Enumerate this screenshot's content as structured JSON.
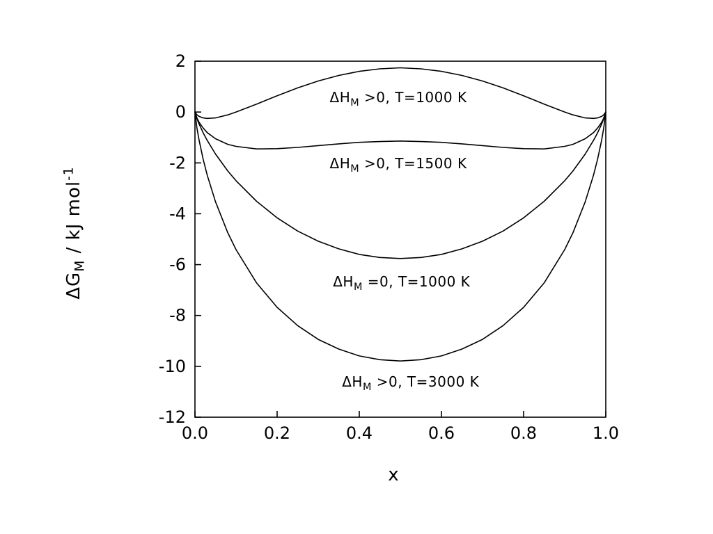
{
  "colors": {
    "background": "#ffffff",
    "foreground": "#000000"
  },
  "chart_data": {
    "type": "line",
    "title": "",
    "xlabel": "x",
    "ylabel": {
      "pre": "ΔG",
      "sub": "M",
      "mid": " / kJ mol",
      "sup": "-1"
    },
    "xlim": [
      0,
      1
    ],
    "ylim": [
      -12,
      2
    ],
    "grid": false,
    "legend": "inline-annotations",
    "xticks": [
      {
        "v": 0.0,
        "label": "0.0"
      },
      {
        "v": 0.2,
        "label": "0.2"
      },
      {
        "v": 0.4,
        "label": "0.4"
      },
      {
        "v": 0.6,
        "label": "0.6"
      },
      {
        "v": 0.8,
        "label": "0.8"
      },
      {
        "v": 1.0,
        "label": "1.0"
      }
    ],
    "yticks": [
      {
        "v": 2,
        "label": "2"
      },
      {
        "v": 0,
        "label": "0"
      },
      {
        "v": -2,
        "label": "-2"
      },
      {
        "v": -4,
        "label": "-4"
      },
      {
        "v": -6,
        "label": "-6"
      },
      {
        "v": -8,
        "label": "-8"
      },
      {
        "v": -10,
        "label": "-10"
      },
      {
        "v": -12,
        "label": "-12"
      }
    ],
    "x": [
      0,
      0.005,
      0.01,
      0.02,
      0.03,
      0.05,
      0.08,
      0.1,
      0.15,
      0.2,
      0.25,
      0.3,
      0.35,
      0.4,
      0.45,
      0.5,
      0.55,
      0.6,
      0.65,
      0.7,
      0.75,
      0.8,
      0.85,
      0.9,
      0.92,
      0.95,
      0.97,
      0.98,
      0.99,
      0.995,
      1
    ],
    "series": [
      {
        "id": "dHpos-T1000",
        "name": "ΔH_M>0, T=1000 K",
        "values": [
          0,
          -0.11,
          -0.17,
          -0.23,
          -0.25,
          -0.23,
          -0.11,
          0.0,
          0.31,
          0.64,
          0.95,
          1.22,
          1.44,
          1.6,
          1.7,
          1.74,
          1.7,
          1.6,
          1.44,
          1.22,
          0.95,
          0.64,
          0.31,
          0.0,
          -0.11,
          -0.23,
          -0.25,
          -0.23,
          -0.17,
          -0.11,
          0
        ]
      },
      {
        "id": "dHpos-T1500",
        "name": "ΔH_M>0, T=1500 K",
        "values": [
          0,
          -0.24,
          -0.4,
          -0.63,
          -0.81,
          -1.05,
          -1.27,
          -1.35,
          -1.45,
          -1.44,
          -1.39,
          -1.32,
          -1.25,
          -1.19,
          -1.16,
          -1.14,
          -1.16,
          -1.19,
          -1.25,
          -1.32,
          -1.39,
          -1.44,
          -1.45,
          -1.35,
          -1.27,
          -1.05,
          -0.81,
          -0.63,
          -0.4,
          -0.24,
          0
        ]
      },
      {
        "id": "dHzero-T1000",
        "name": "ΔH_M=0, T=1000 K",
        "values": [
          0,
          -0.26,
          -0.47,
          -0.82,
          -1.12,
          -1.65,
          -2.32,
          -2.7,
          -3.51,
          -4.16,
          -4.68,
          -5.08,
          -5.38,
          -5.6,
          -5.72,
          -5.76,
          -5.72,
          -5.6,
          -5.38,
          -5.08,
          -4.68,
          -4.16,
          -3.51,
          -2.7,
          -2.32,
          -1.65,
          -1.12,
          -0.82,
          -0.47,
          -0.26,
          0
        ]
      },
      {
        "id": "dHpos-T3000",
        "name": "ΔH_M>0, T=3000 K",
        "values": [
          0,
          -0.64,
          -1.1,
          -1.86,
          -2.49,
          -3.53,
          -4.75,
          -5.41,
          -6.72,
          -7.68,
          -8.4,
          -8.94,
          -9.32,
          -9.59,
          -9.74,
          -9.79,
          -9.74,
          -9.59,
          -9.32,
          -8.94,
          -8.4,
          -7.68,
          -6.72,
          -5.41,
          -4.75,
          -3.53,
          -2.49,
          -1.86,
          -1.1,
          -0.64,
          0
        ]
      }
    ],
    "annotations": [
      {
        "pre": "ΔH",
        "sub": "M",
        "post": " >0, T=1000 K",
        "x": 0.495,
        "y": 0.52
      },
      {
        "pre": "ΔH",
        "sub": "M",
        "post": " >0, T=1500 K",
        "x": 0.495,
        "y": -2.08
      },
      {
        "pre": "ΔH",
        "sub": "M",
        "post": " =0, T=1000 K",
        "x": 0.503,
        "y": -6.71
      },
      {
        "pre": "ΔH",
        "sub": "M",
        "post": " >0, T=3000 K",
        "x": 0.525,
        "y": -10.66
      }
    ]
  }
}
